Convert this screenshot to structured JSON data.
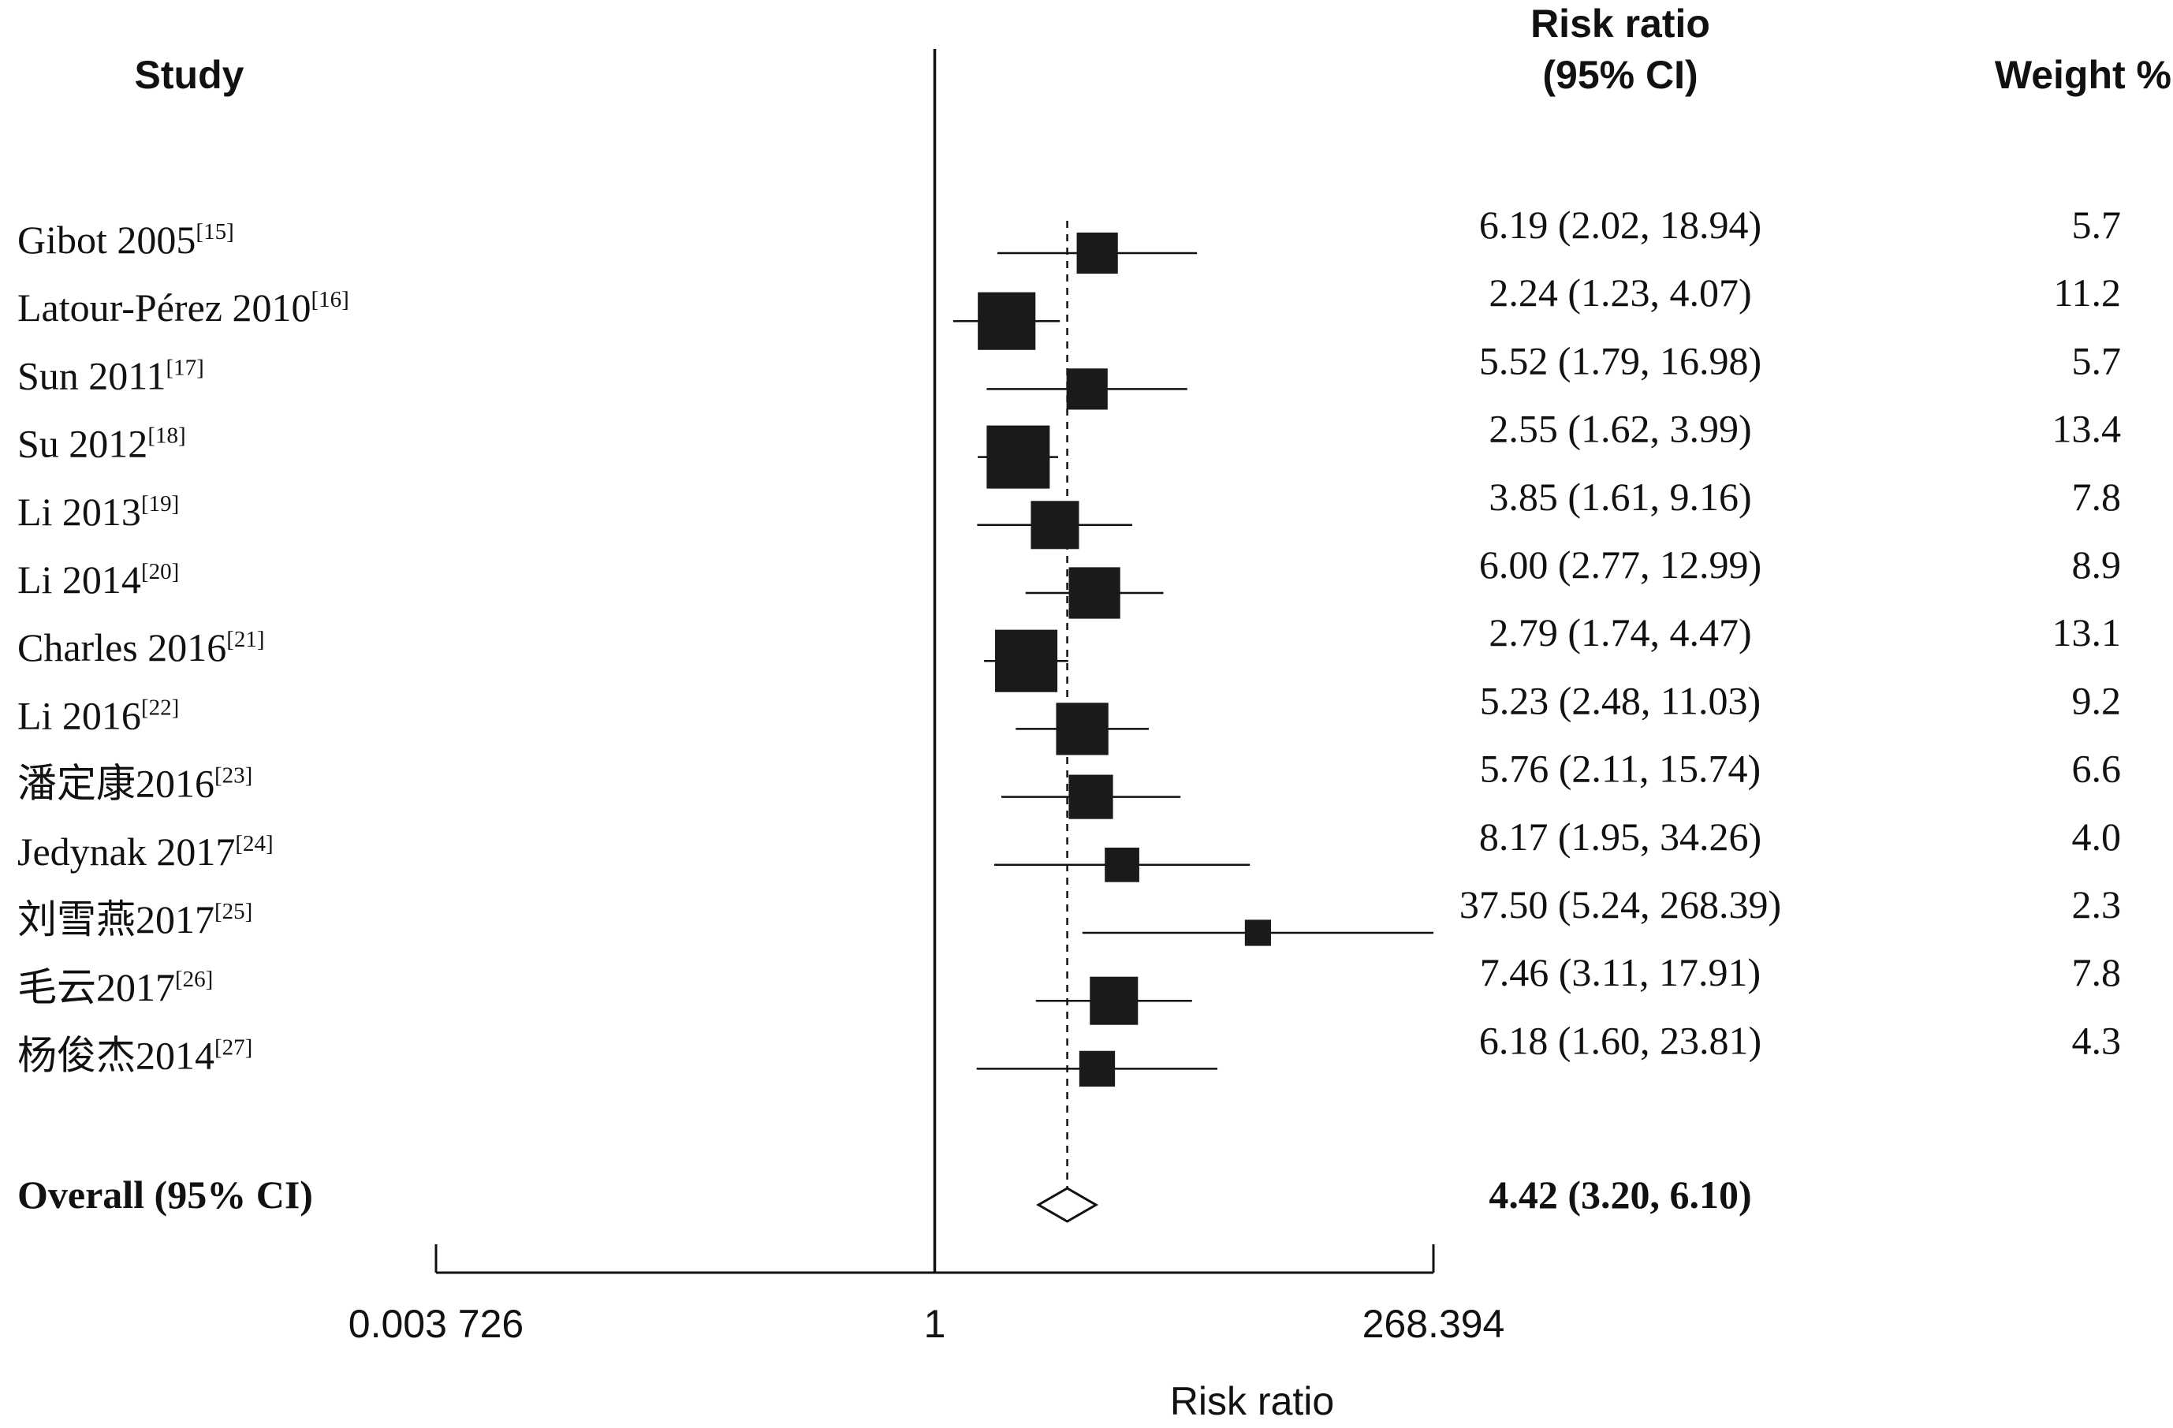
{
  "chart_data": {
    "type": "forest",
    "headers": {
      "study": "Study",
      "effect_line1": "Risk ratio",
      "effect_line2": "(95% CI)",
      "weight": "Weight %"
    },
    "studies": [
      {
        "name": "Gibot 2005",
        "ref": "[15]",
        "rr": 6.19,
        "lo": 2.02,
        "hi": 18.94,
        "ci_text": "6.19 (2.02, 18.94)",
        "weight": "5.7"
      },
      {
        "name": "Latour-Pérez 2010",
        "ref": "[16]",
        "rr": 2.24,
        "lo": 1.23,
        "hi": 4.07,
        "ci_text": "2.24 (1.23, 4.07)",
        "weight": "11.2"
      },
      {
        "name": "Sun 2011",
        "ref": "[17]",
        "rr": 5.52,
        "lo": 1.79,
        "hi": 16.98,
        "ci_text": "5.52 (1.79, 16.98)",
        "weight": "5.7"
      },
      {
        "name": "Su 2012",
        "ref": "[18]",
        "rr": 2.55,
        "lo": 1.62,
        "hi": 3.99,
        "ci_text": "2.55 (1.62, 3.99)",
        "weight": "13.4"
      },
      {
        "name": "Li 2013",
        "ref": "[19]",
        "rr": 3.85,
        "lo": 1.61,
        "hi": 9.16,
        "ci_text": "3.85 (1.61, 9.16)",
        "weight": "7.8"
      },
      {
        "name": "Li 2014",
        "ref": "[20]",
        "rr": 6.0,
        "lo": 2.77,
        "hi": 12.99,
        "ci_text": "6.00 (2.77, 12.99)",
        "weight": "8.9"
      },
      {
        "name": "Charles 2016",
        "ref": "[21]",
        "rr": 2.79,
        "lo": 1.74,
        "hi": 4.47,
        "ci_text": "2.79 (1.74, 4.47)",
        "weight": "13.1"
      },
      {
        "name": "Li 2016",
        "ref": "[22]",
        "rr": 5.23,
        "lo": 2.48,
        "hi": 11.03,
        "ci_text": "5.23 (2.48, 11.03)",
        "weight": "9.2"
      },
      {
        "name": "潘定康2016",
        "ref": "[23]",
        "rr": 5.76,
        "lo": 2.11,
        "hi": 15.74,
        "ci_text": "5.76 (2.11, 15.74)",
        "weight": "6.6"
      },
      {
        "name": "Jedynak 2017",
        "ref": "[24]",
        "rr": 8.17,
        "lo": 1.95,
        "hi": 34.26,
        "ci_text": "8.17 (1.95, 34.26)",
        "weight": "4.0"
      },
      {
        "name": "刘雪燕2017",
        "ref": "[25]",
        "rr": 37.5,
        "lo": 5.24,
        "hi": 268.39,
        "ci_text": "37.50 (5.24, 268.39)",
        "weight": "2.3"
      },
      {
        "name": "毛云2017",
        "ref": "[26]",
        "rr": 7.46,
        "lo": 3.11,
        "hi": 17.91,
        "ci_text": "7.46 (3.11, 17.91)",
        "weight": "7.8"
      },
      {
        "name": "杨俊杰2014",
        "ref": "[27]",
        "rr": 6.18,
        "lo": 1.6,
        "hi": 23.81,
        "ci_text": "6.18 (1.60, 23.81)",
        "weight": "4.3"
      }
    ],
    "overall": {
      "label": "Overall (95% CI)",
      "rr": 4.42,
      "lo": 3.2,
      "hi": 6.1,
      "ci_text": "4.42 (3.20, 6.10)"
    },
    "x_axis": {
      "scale": "log",
      "range": [
        0.003726,
        268.394
      ],
      "null_value": 1,
      "ticks": [
        {
          "value": 0.003726,
          "label": "0.003 726"
        },
        {
          "value": 1,
          "label": "1"
        },
        {
          "value": 268.394,
          "label": "268.394"
        }
      ],
      "label": "Risk ratio"
    },
    "colors": {
      "marker": "#1a1a1a",
      "line": "#111111",
      "diamond_fill": "#ffffff"
    }
  }
}
